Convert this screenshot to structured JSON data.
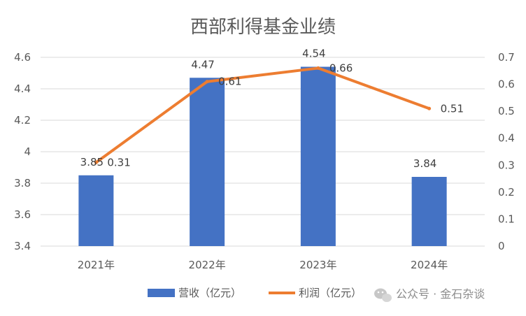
{
  "chart_data": {
    "type": "bar",
    "title": "西部利得基金业绩",
    "categories": [
      "2021年",
      "2022年",
      "2023年",
      "2024年"
    ],
    "series": [
      {
        "name": "营收（亿元）",
        "type": "bar",
        "axis": "left",
        "color": "#4472C4",
        "values": [
          3.85,
          4.47,
          4.54,
          3.84
        ],
        "labels": [
          "3.85",
          "4.47",
          "4.54",
          "3.84"
        ]
      },
      {
        "name": "利润（亿元）",
        "type": "line",
        "axis": "right",
        "color": "#ED7D31",
        "values": [
          0.31,
          0.61,
          0.66,
          0.51
        ],
        "labels": [
          "0.31",
          "0.61",
          "0.66",
          "0.51"
        ]
      }
    ],
    "y_left": {
      "min": 3.4,
      "max": 4.6,
      "ticks": [
        "3.4",
        "3.6",
        "3.8",
        "4",
        "4.2",
        "4.4",
        "4.6"
      ]
    },
    "y_right": {
      "min": 0,
      "max": 0.7,
      "ticks": [
        "0",
        "0.1",
        "0.2",
        "0.3",
        "0.4",
        "0.5",
        "0.6",
        "0.7"
      ]
    },
    "grid": true,
    "legend_position": "bottom"
  },
  "watermark": {
    "text": "公众号 · 金石杂谈",
    "icon": "wechat-icon"
  }
}
